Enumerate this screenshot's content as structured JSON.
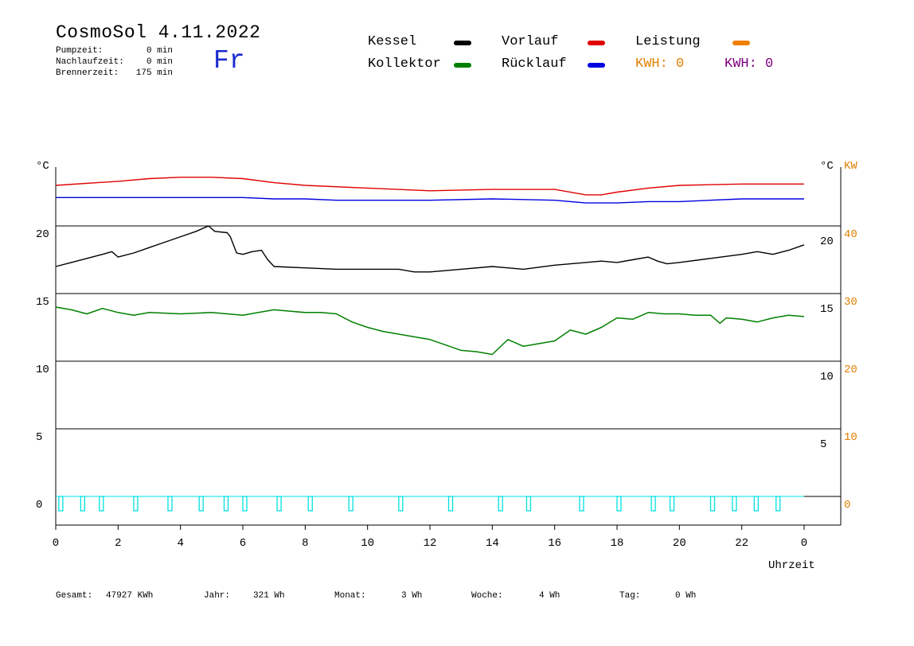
{
  "header": {
    "title": "CosmoSol 4.11.2022",
    "weekday": "Fr",
    "stats": [
      {
        "label": "Pumpzeit:",
        "value": "0 min"
      },
      {
        "label": "Nachlaufzeit:",
        "value": "0 min"
      },
      {
        "label": "Brennerzeit:",
        "value": "175 min"
      }
    ]
  },
  "legend": {
    "kessel": {
      "label": "Kessel",
      "color": "#000000"
    },
    "vorlauf": {
      "label": "Vorlauf",
      "color": "#e00000"
    },
    "leistung": {
      "label": "Leistung",
      "color": "#f08000"
    },
    "kollektor": {
      "label": "Kollektor",
      "color": "#008000"
    },
    "ruecklauf": {
      "label": "Rücklauf",
      "color": "#0000e0"
    },
    "kwh_orange": "KWH: 0",
    "kwh_purple": "KWH: 0",
    "kwh_orange_color": "#e08000",
    "kwh_purple_color": "#800080"
  },
  "footer": {
    "gesamt_label": "Gesamt:",
    "gesamt_value": "47927 KWh",
    "jahr_label": "Jahr:",
    "jahr_value": "321 Wh",
    "monat_label": "Monat:",
    "monat_value": "3 Wh",
    "woche_label": "Woche:",
    "woche_value": "4 Wh",
    "tag_label": "Tag:",
    "tag_value": "0 Wh"
  },
  "chart_data": {
    "type": "line",
    "xlabel": "Uhrzeit",
    "x_ticks": [
      "0",
      "2",
      "4",
      "6",
      "8",
      "10",
      "12",
      "14",
      "16",
      "18",
      "20",
      "22",
      "0"
    ],
    "xlim": [
      0,
      24
    ],
    "left_axis": {
      "unit": "°C",
      "ticks": [
        "20",
        "15",
        "10",
        "5",
        "0"
      ]
    },
    "right_axis_temp": {
      "unit": "°C",
      "ticks": [
        "20",
        "15",
        "10",
        "5"
      ]
    },
    "right_axis_power": {
      "unit": "KW",
      "ticks": [
        "40",
        "30",
        "20",
        "10",
        "0"
      ]
    },
    "ylim": [
      -2,
      25
    ],
    "series": [
      {
        "name": "Vorlauf",
        "color": "#e00000",
        "x": [
          0,
          2,
          3,
          4,
          5,
          6,
          7,
          8,
          10,
          12,
          14,
          16,
          17,
          17.5,
          18,
          19,
          20,
          22,
          24
        ],
        "y": [
          23.0,
          23.3,
          23.5,
          23.6,
          23.6,
          23.5,
          23.2,
          23.0,
          22.8,
          22.6,
          22.7,
          22.7,
          22.3,
          22.3,
          22.5,
          22.8,
          23.0,
          23.1,
          23.1
        ]
      },
      {
        "name": "Rücklauf",
        "color": "#0000e0",
        "x": [
          0,
          2,
          4,
          6,
          7,
          8,
          9,
          10,
          12,
          14,
          16,
          17,
          17.5,
          18,
          19,
          20,
          22,
          24
        ],
        "y": [
          22.1,
          22.1,
          22.1,
          22.1,
          22.0,
          22.0,
          21.9,
          21.9,
          21.9,
          22.0,
          21.9,
          21.7,
          21.7,
          21.7,
          21.8,
          21.8,
          22.0,
          22.0
        ]
      },
      {
        "name": "Kessel",
        "color": "#000000",
        "x": [
          0,
          0.5,
          1,
          1.5,
          1.8,
          2,
          2.5,
          3,
          3.5,
          4,
          4.5,
          4.9,
          5.1,
          5.5,
          5.6,
          5.8,
          6,
          6.3,
          6.6,
          6.8,
          7,
          8,
          9,
          10,
          11,
          11.5,
          12,
          13,
          14,
          15,
          16,
          17,
          17.5,
          18,
          18.5,
          19,
          19.3,
          19.6,
          20,
          21,
          22,
          22.5,
          23,
          23.5,
          24
        ],
        "y": [
          17.0,
          17.3,
          17.6,
          17.9,
          18.1,
          17.7,
          18.0,
          18.4,
          18.8,
          19.2,
          19.6,
          20.0,
          19.6,
          19.5,
          19.2,
          18.0,
          17.9,
          18.1,
          18.2,
          17.5,
          17.0,
          16.9,
          16.8,
          16.8,
          16.8,
          16.6,
          16.6,
          16.8,
          17.0,
          16.8,
          17.1,
          17.3,
          17.4,
          17.3,
          17.5,
          17.7,
          17.4,
          17.2,
          17.3,
          17.6,
          17.9,
          18.1,
          17.9,
          18.2,
          18.6
        ]
      },
      {
        "name": "Kollektor",
        "color": "#008000",
        "x": [
          0,
          0.5,
          1,
          1.5,
          2,
          2.5,
          3,
          4,
          5,
          6,
          6.5,
          7,
          7.5,
          8,
          8.5,
          9,
          9.5,
          10,
          10.5,
          11,
          11.5,
          12,
          12.5,
          13,
          13.5,
          14,
          14.5,
          15,
          15.5,
          16,
          16.5,
          17,
          17.5,
          18,
          18.5,
          19,
          19.5,
          20,
          20.5,
          21,
          21.3,
          21.5,
          22,
          22.5,
          23,
          23.5,
          24
        ],
        "y": [
          14.0,
          13.8,
          13.5,
          13.9,
          13.6,
          13.4,
          13.6,
          13.5,
          13.6,
          13.4,
          13.6,
          13.8,
          13.7,
          13.6,
          13.6,
          13.5,
          12.9,
          12.5,
          12.2,
          12.0,
          11.8,
          11.6,
          11.2,
          10.8,
          10.7,
          10.5,
          11.6,
          11.1,
          11.3,
          11.5,
          12.3,
          12.0,
          12.5,
          13.2,
          13.1,
          13.6,
          13.5,
          13.5,
          13.4,
          13.4,
          12.8,
          13.2,
          13.1,
          12.9,
          13.2,
          13.4,
          13.3
        ]
      }
    ],
    "burner_pulses_hours": [
      0.1,
      0.8,
      1.4,
      2.5,
      3.6,
      4.6,
      5.4,
      6.0,
      7.1,
      8.1,
      9.4,
      11.0,
      12.6,
      14.2,
      15.1,
      16.8,
      18.0,
      19.1,
      19.7,
      21.0,
      21.7,
      22.4,
      23.1
    ],
    "burner_color": "#00e0e0"
  }
}
